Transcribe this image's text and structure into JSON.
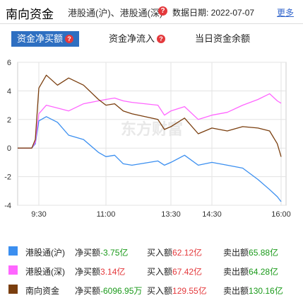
{
  "header": {
    "title": "南向资金",
    "subtitle": "港股通(沪)、港股通(深)",
    "help_icon": "?",
    "date_label": "数据日期: 2022-07-07",
    "more": "更多"
  },
  "tabs": [
    {
      "label": "资金净买额",
      "help": "?",
      "active": true
    },
    {
      "label": "资金净流入",
      "help": "?",
      "active": false
    },
    {
      "label": "当日资金余额",
      "active": false
    }
  ],
  "watermark": "东方财富",
  "chart_data": {
    "type": "line",
    "y_ticks": [
      "6",
      "4",
      "2",
      "0",
      "-2",
      "-4"
    ],
    "x_ticks": [
      "9:30",
      "11:00",
      "13:30",
      "14:30",
      "16:00"
    ],
    "ylim": [
      -4,
      6
    ],
    "grid": true,
    "series": [
      {
        "name": "港股通(沪)",
        "color": "#3b8ff0",
        "x": [
          "9:00",
          "9:20",
          "9:25",
          "9:30",
          "9:40",
          "9:55",
          "10:10",
          "10:30",
          "10:50",
          "11:00",
          "11:20",
          "11:40",
          "12:00",
          "13:00",
          "13:15",
          "13:30",
          "13:50",
          "14:10",
          "14:30",
          "14:50",
          "15:10",
          "15:30",
          "15:45",
          "15:55",
          "16:00"
        ],
        "values": [
          0,
          0,
          0.3,
          1.9,
          2.2,
          1.8,
          0.9,
          0.6,
          -0.3,
          -0.6,
          -0.5,
          -1.1,
          -1.2,
          -0.9,
          -1.2,
          -1.0,
          -0.5,
          -1.2,
          -1.0,
          -1.2,
          -1.4,
          -2.2,
          -2.9,
          -3.4,
          -3.75
        ]
      },
      {
        "name": "港股通(深)",
        "color": "#ff66ff",
        "x": [
          "9:00",
          "9:20",
          "9:25",
          "9:30",
          "9:40",
          "9:55",
          "10:10",
          "10:30",
          "10:50",
          "11:00",
          "11:20",
          "11:40",
          "12:00",
          "13:00",
          "13:15",
          "13:30",
          "13:50",
          "14:10",
          "14:30",
          "14:50",
          "15:10",
          "15:30",
          "15:45",
          "15:55",
          "16:00"
        ],
        "values": [
          0,
          0,
          0.4,
          2.4,
          3.0,
          2.8,
          2.6,
          3.1,
          3.3,
          3.4,
          3.5,
          3.3,
          3.2,
          3.0,
          2.3,
          2.6,
          2.9,
          2.0,
          2.3,
          2.5,
          3.0,
          3.4,
          3.8,
          3.3,
          3.14
        ]
      },
      {
        "name": "南向资金",
        "color": "#7a3e0e",
        "x": [
          "9:00",
          "9:20",
          "9:25",
          "9:30",
          "9:40",
          "9:55",
          "10:10",
          "10:30",
          "10:50",
          "11:00",
          "11:20",
          "11:40",
          "12:00",
          "13:00",
          "13:15",
          "13:30",
          "13:50",
          "14:10",
          "14:30",
          "14:50",
          "15:10",
          "15:30",
          "15:45",
          "15:55",
          "16:00"
        ],
        "values": [
          0,
          0,
          0.6,
          4.2,
          5.1,
          4.4,
          4.9,
          4.4,
          3.4,
          3.0,
          3.1,
          2.6,
          2.4,
          2.0,
          1.3,
          1.5,
          2.1,
          1.0,
          1.4,
          1.2,
          1.5,
          1.4,
          1.2,
          0.3,
          -0.61
        ]
      }
    ]
  },
  "legend": [
    {
      "name": "港股通(沪)",
      "color": "#3b8ff0",
      "net_label": "净买额",
      "net_value": "-3.75亿",
      "net_color": "green",
      "buy_label": "买入额",
      "buy_value": "62.12亿",
      "sell_label": "卖出额",
      "sell_value": "65.88亿"
    },
    {
      "name": "港股通(深)",
      "color": "#ff66ff",
      "net_label": "净买额",
      "net_value": "3.14亿",
      "net_color": "red",
      "buy_label": "买入额",
      "buy_value": "67.42亿",
      "sell_label": "卖出额",
      "sell_value": "64.28亿"
    },
    {
      "name": "南向资金",
      "color": "#7a3e0e",
      "net_label": "净买额",
      "net_value": "-6096.95万",
      "net_color": "green",
      "buy_label": "买入额",
      "buy_value": "129.55亿",
      "sell_label": "卖出额",
      "sell_value": "130.16亿"
    }
  ]
}
